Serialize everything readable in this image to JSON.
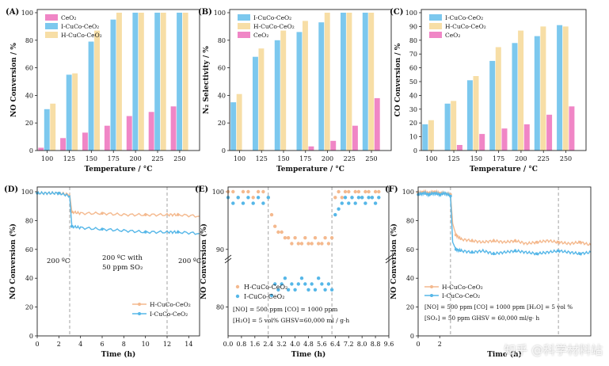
{
  "colors": {
    "pink": "#f086c6",
    "blue": "#7cc8ee",
    "yellow": "#f7dea6",
    "orange_line": "#f4b98e",
    "blue_line": "#56b7e8",
    "dash": "#999999"
  },
  "watermark": "知乎 @科学材料站",
  "chart_data": [
    {
      "type": "bar",
      "panel": "(A)",
      "xlabel": "Temperature / °C",
      "ylabel": "NO Conversion / %",
      "categories": [
        "100",
        "125",
        "150",
        "175",
        "200",
        "225",
        "250"
      ],
      "ylim": [
        0,
        100
      ],
      "yticks": [
        0,
        20,
        40,
        60,
        80,
        100
      ],
      "legend": [
        "CeO₂",
        "I-CuCo-CeO₂",
        "H-CuCo-CeO₂"
      ],
      "series": [
        {
          "name": "CeO₂",
          "color": "pink",
          "values": [
            2,
            9,
            13,
            18,
            25,
            28,
            32
          ]
        },
        {
          "name": "I-CuCo-CeO₂",
          "color": "blue",
          "values": [
            30,
            55,
            79,
            95,
            100,
            100,
            100
          ]
        },
        {
          "name": "H-CuCo-CeO₂",
          "color": "yellow",
          "values": [
            34,
            56,
            87,
            100,
            100,
            100,
            100
          ]
        }
      ],
      "order": [
        "CeO₂",
        "I-CuCo-CeO₂",
        "H-CuCo-CeO₂"
      ]
    },
    {
      "type": "bar",
      "panel": "(B)",
      "xlabel": "Temperature / °C",
      "ylabel": "N₂ Selectivity / %",
      "categories": [
        "100",
        "125",
        "150",
        "175",
        "200",
        "225",
        "250"
      ],
      "ylim": [
        0,
        100
      ],
      "yticks": [
        0,
        20,
        40,
        60,
        80,
        100
      ],
      "legend": [
        "I-CuCo-CeO₂",
        "H-CuCo-CeO₂",
        "CeO₂"
      ],
      "series": [
        {
          "name": "I-CuCo-CeO₂",
          "color": "blue",
          "values": [
            35,
            68,
            80,
            86,
            93,
            100,
            100
          ]
        },
        {
          "name": "H-CuCo-CeO₂",
          "color": "yellow",
          "values": [
            41,
            74,
            87,
            94,
            100,
            100,
            100
          ]
        },
        {
          "name": "CeO₂",
          "color": "pink",
          "values": [
            0,
            0,
            0,
            3,
            7,
            18,
            38
          ]
        }
      ],
      "order": [
        "I-CuCo-CeO₂",
        "H-CuCo-CeO₂",
        "CeO₂"
      ]
    },
    {
      "type": "bar",
      "panel": "(C)",
      "xlabel": "Temperature / °C",
      "ylabel": "CO Conversion / %",
      "categories": [
        "100",
        "125",
        "150",
        "175",
        "200",
        "225",
        "250"
      ],
      "ylim": [
        0,
        100
      ],
      "yticks": [
        0,
        10,
        20,
        30,
        40,
        50,
        60,
        70,
        80,
        90,
        100
      ],
      "legend": [
        "I-CuCo-CeO₂",
        "H-CuCo-CeO₂",
        "CeO₂"
      ],
      "series": [
        {
          "name": "I-CuCo-CeO₂",
          "color": "blue",
          "values": [
            19,
            34,
            51,
            65,
            78,
            83,
            91
          ]
        },
        {
          "name": "H-CuCo-CeO₂",
          "color": "yellow",
          "values": [
            22,
            36,
            54,
            75,
            87,
            90,
            90
          ]
        },
        {
          "name": "CeO₂",
          "color": "pink",
          "values": [
            0,
            4,
            12,
            16,
            19,
            26,
            32
          ]
        }
      ],
      "order": [
        "I-CuCo-CeO₂",
        "H-CuCo-CeO₂",
        "CeO₂"
      ]
    },
    {
      "type": "line",
      "panel": "(D)",
      "xlabel": "Time (h)",
      "ylabel": "NO Conversion (%)",
      "xlim": [
        0,
        15
      ],
      "xticks": [
        0,
        2,
        4,
        6,
        8,
        10,
        12,
        14
      ],
      "ylim": [
        0,
        100
      ],
      "yticks": [
        0,
        20,
        40,
        60,
        80,
        100
      ],
      "vlines": [
        3,
        12
      ],
      "annotations": [
        "200 ºC",
        "200 ºC with",
        "50 ppm SO₂",
        "200 ºC"
      ],
      "legend": [
        "H-CuCo-CeO₂",
        "I-CuCo-CeO₂"
      ],
      "series": [
        {
          "name": "H-CuCo-CeO₂",
          "color": "orange_line",
          "style": "line",
          "x": [
            0,
            1,
            2,
            3,
            3.2,
            4,
            6,
            8,
            10,
            12,
            13,
            15
          ],
          "y": [
            99,
            99,
            99,
            98,
            86,
            85,
            85,
            84,
            84,
            84,
            84,
            83
          ]
        },
        {
          "name": "I-CuCo-CeO₂",
          "color": "blue_line",
          "style": "line",
          "x": [
            0,
            1,
            2,
            3,
            3.2,
            4,
            6,
            8,
            10,
            12,
            13,
            15
          ],
          "y": [
            99,
            99,
            99,
            97,
            76,
            75,
            74,
            73,
            72,
            72,
            72,
            71
          ]
        }
      ]
    },
    {
      "type": "scatter",
      "panel": "(E)",
      "xlabel": "Time (h)",
      "ylabel": "NO Conversion (%)",
      "xlim": [
        0,
        9.6
      ],
      "xticks": [
        "0.0",
        "0.8",
        "1.6",
        "2.4",
        "3.2",
        "4.0",
        "4.8",
        "5.6",
        "6.4",
        "7.2",
        "8.0",
        "8.8",
        "9.6"
      ],
      "ylim": [
        75,
        100
      ],
      "yticks": [
        80,
        90,
        100
      ],
      "vlines": [
        2.4,
        6.2
      ],
      "legend": [
        "H-CuCo-CeO₂",
        "I-CuCo-CeO₂"
      ],
      "conditions": [
        "[NO] = 500 ppm   [CO] = 1000 ppm",
        "[H₂O] = 5 vol%   GHSV=60,000 ml / g·h"
      ],
      "series": [
        {
          "name": "H-CuCo-CeO₂",
          "color": "orange_line",
          "style": "scatter",
          "x": [
            0.0,
            0.3,
            0.6,
            0.9,
            1.2,
            1.5,
            1.8,
            2.1,
            2.4,
            2.6,
            2.8,
            3.0,
            3.2,
            3.4,
            3.6,
            3.8,
            4.0,
            4.2,
            4.4,
            4.6,
            4.8,
            5.0,
            5.2,
            5.4,
            5.6,
            5.8,
            6.0,
            6.2,
            6.4,
            6.6,
            6.8,
            7.0,
            7.2,
            7.4,
            7.6,
            7.8,
            8.0,
            8.2,
            8.4,
            8.6,
            8.8,
            9.0
          ],
          "y": [
            100,
            100,
            99,
            100,
            100,
            99,
            100,
            100,
            99,
            96,
            94,
            93,
            93,
            92,
            92,
            91,
            92,
            91,
            91,
            92,
            91,
            91,
            92,
            91,
            91,
            92,
            91,
            92,
            99,
            100,
            99,
            100,
            100,
            99,
            100,
            100,
            99,
            100,
            100,
            99,
            100,
            100
          ]
        },
        {
          "name": "I-CuCo-CeO₂",
          "color": "blue_line",
          "style": "scatter",
          "x": [
            0.0,
            0.3,
            0.6,
            0.9,
            1.2,
            1.5,
            1.8,
            2.1,
            2.4,
            2.6,
            2.8,
            3.0,
            3.2,
            3.4,
            3.6,
            3.8,
            4.0,
            4.2,
            4.4,
            4.6,
            4.8,
            5.0,
            5.2,
            5.4,
            5.6,
            5.8,
            6.0,
            6.2,
            6.4,
            6.6,
            6.8,
            7.0,
            7.2,
            7.4,
            7.6,
            7.8,
            8.0,
            8.2,
            8.4,
            8.6,
            8.8,
            9.0
          ],
          "y": [
            99,
            98,
            99,
            98,
            99,
            98,
            99,
            98,
            99,
            82,
            84,
            83,
            84,
            85,
            83,
            84,
            83,
            84,
            85,
            84,
            83,
            84,
            83,
            85,
            84,
            83,
            84,
            83,
            96,
            97,
            98,
            99,
            98,
            99,
            98,
            99,
            99,
            98,
            99,
            99,
            98,
            99
          ]
        }
      ]
    },
    {
      "type": "line",
      "panel": "(F)",
      "xlabel": "Time (h)",
      "ylabel": "NO Conversion (%)",
      "xlim": [
        0,
        16
      ],
      "xticks": [
        0,
        2
      ],
      "ylim": [
        0,
        100
      ],
      "yticks": [
        0,
        20,
        40,
        60,
        80,
        100
      ],
      "vlines": [
        3,
        13
      ],
      "legend": [
        "H-CuCo-CeO₂",
        "I-CuCo-CeO₂"
      ],
      "conditions": [
        "[NO] = 500 ppm  [CO] = 1000 ppm  [H₂O] = 5 vol %",
        "[SO₂] = 50 ppm  GHSV = 60,000 ml/g· h"
      ],
      "series": [
        {
          "name": "H-CuCo-CeO₂",
          "color": "orange_line",
          "style": "line",
          "x": [
            0,
            0.5,
            1,
            1.5,
            2,
            2.5,
            3,
            3.2,
            3.5,
            4,
            5,
            6,
            7,
            8,
            9,
            10,
            11,
            12,
            13,
            14,
            15,
            16
          ],
          "y": [
            99,
            100,
            99,
            100,
            99,
            99,
            98,
            78,
            70,
            67,
            66,
            65,
            66,
            65,
            66,
            64,
            65,
            66,
            65,
            64,
            65,
            63
          ]
        },
        {
          "name": "I-CuCo-CeO₂",
          "color": "blue_line",
          "style": "line",
          "x": [
            0,
            0.5,
            1,
            1.5,
            2,
            2.5,
            3,
            3.2,
            3.5,
            4,
            5,
            6,
            7,
            8,
            9,
            10,
            11,
            12,
            13,
            14,
            15,
            16
          ],
          "y": [
            98,
            99,
            98,
            99,
            98,
            99,
            97,
            65,
            60,
            59,
            58,
            59,
            57,
            58,
            59,
            58,
            57,
            58,
            59,
            58,
            57,
            58
          ]
        }
      ]
    }
  ]
}
